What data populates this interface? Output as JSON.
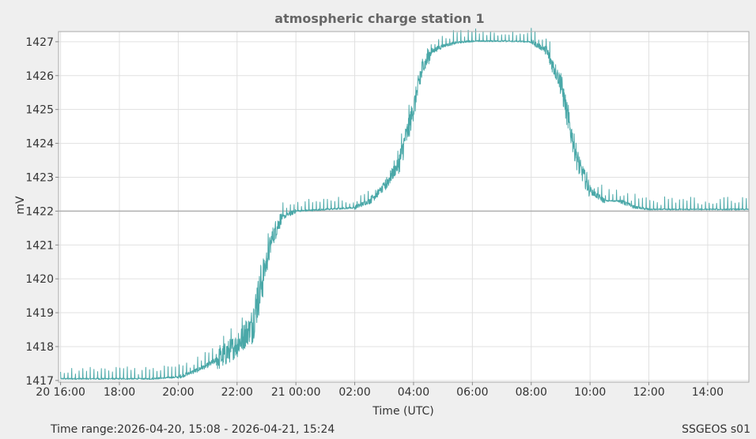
{
  "chart_data": {
    "type": "line",
    "title": "atmospheric charge station 1",
    "xlabel": "Time (UTC)",
    "ylabel": "mV",
    "ylim": [
      1416.95,
      1427.3
    ],
    "y_ticks": [
      1417,
      1418,
      1419,
      1420,
      1421,
      1422,
      1423,
      1424,
      1425,
      1426,
      1427
    ],
    "xlim_hours": [
      15.93,
      39.4
    ],
    "x_ticks": [
      {
        "h": 16,
        "label": "20 16:00"
      },
      {
        "h": 18,
        "label": "18:00"
      },
      {
        "h": 20,
        "label": "20:00"
      },
      {
        "h": 22,
        "label": "22:00"
      },
      {
        "h": 24,
        "label": "21 00:00"
      },
      {
        "h": 26,
        "label": "02:00"
      },
      {
        "h": 28,
        "label": "04:00"
      },
      {
        "h": 30,
        "label": "06:00"
      },
      {
        "h": 32,
        "label": "08:00"
      },
      {
        "h": 34,
        "label": "10:00"
      },
      {
        "h": 36,
        "label": "12:00"
      },
      {
        "h": 38,
        "label": "14:00"
      }
    ],
    "grid": true,
    "reference_line": 1422,
    "series": [
      {
        "color": "#4aa8a8",
        "x_hours": [
          16.0,
          17.0,
          18.0,
          19.0,
          20.0,
          20.5,
          21.0,
          21.5,
          22.0,
          22.5,
          23.0,
          23.2,
          23.5,
          24.0,
          25.0,
          26.0,
          26.5,
          27.0,
          27.5,
          28.0,
          28.3,
          28.6,
          29.0,
          29.5,
          30.0,
          31.0,
          32.0,
          32.5,
          33.0,
          33.3,
          33.6,
          34.0,
          34.5,
          35.0,
          35.5,
          36.0,
          37.0,
          38.0,
          39.4
        ],
        "values": [
          1417.05,
          1417.05,
          1417.05,
          1417.05,
          1417.1,
          1417.25,
          1417.45,
          1417.7,
          1418.05,
          1418.6,
          1420.5,
          1421.2,
          1421.8,
          1422.0,
          1422.05,
          1422.1,
          1422.3,
          1422.7,
          1423.4,
          1425.0,
          1426.2,
          1426.7,
          1426.88,
          1426.98,
          1427.02,
          1427.02,
          1427.0,
          1426.75,
          1425.8,
          1424.5,
          1423.4,
          1422.6,
          1422.3,
          1422.3,
          1422.12,
          1422.05,
          1422.05,
          1422.05,
          1422.05
        ]
      }
    ]
  },
  "footer": {
    "time_range": "Time range:2026-04-20, 15:08 - 2026-04-21, 15:24",
    "station": "SSGEOS s01"
  },
  "colors": {
    "series": "#4aa8a8",
    "grid": "#e0e0e0",
    "frame": "#aaaaaa",
    "background": "#efefef",
    "plot": "#ffffff"
  }
}
